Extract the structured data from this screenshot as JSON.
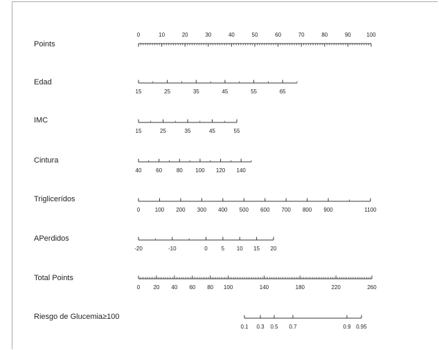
{
  "chart_data": {
    "type": "nomogram",
    "title": "",
    "points_range": [
      0,
      100
    ],
    "rows": [
      {
        "name": "Points",
        "ticks": [
          "0",
          "10",
          "20",
          "30",
          "40",
          "50",
          "60",
          "70",
          "80",
          "90",
          "100"
        ],
        "tick_values": [
          0,
          10,
          20,
          30,
          40,
          50,
          60,
          70,
          80,
          90,
          100
        ],
        "range": [
          0,
          100
        ],
        "minor_step": 1,
        "labels_above": true
      },
      {
        "name": "Edad",
        "ticks": [
          "15",
          "25",
          "35",
          "45",
          "55",
          "65"
        ],
        "tick_values": [
          15,
          25,
          35,
          45,
          55,
          65
        ],
        "range": [
          15,
          70
        ],
        "minor_step": 5,
        "labels_above": false
      },
      {
        "name": "IMC",
        "ticks": [
          "15",
          "25",
          "35",
          "45",
          "55"
        ],
        "tick_values": [
          15,
          25,
          35,
          45,
          55
        ],
        "range": [
          15,
          55
        ],
        "minor_step": 5,
        "labels_above": false
      },
      {
        "name": "Cintura",
        "ticks": [
          "40",
          "60",
          "80",
          "100",
          "120",
          "140"
        ],
        "tick_values": [
          40,
          60,
          80,
          100,
          120,
          140
        ],
        "range": [
          40,
          150
        ],
        "minor_step": 10,
        "labels_above": false
      },
      {
        "name": "Triglicerídos",
        "ticks": [
          "0",
          "100",
          "200",
          "300",
          "400",
          "500",
          "600",
          "700",
          "800",
          "900",
          "1100"
        ],
        "tick_values": [
          0,
          100,
          200,
          300,
          400,
          500,
          600,
          700,
          800,
          900,
          1100
        ],
        "range": [
          0,
          1100
        ],
        "minor_step": 100,
        "labels_above": false
      },
      {
        "name": "APerdidos",
        "ticks": [
          "-20",
          "-10",
          "0",
          "5",
          "10",
          "15",
          "20"
        ],
        "tick_values": [
          -20,
          -10,
          0,
          5,
          10,
          15,
          20
        ],
        "range": [
          -20,
          20
        ],
        "minor_step": 5,
        "labels_above": false
      },
      {
        "name": "Total Points",
        "ticks": [
          "0",
          "20",
          "40",
          "60",
          "80",
          "100",
          "140",
          "180",
          "220",
          "260"
        ],
        "tick_values": [
          0,
          20,
          40,
          60,
          80,
          100,
          140,
          180,
          220,
          260
        ],
        "range": [
          0,
          260
        ],
        "minor_step": 2,
        "labels_above": false
      },
      {
        "name": "Riesgo de Glucemia≥100",
        "ticks": [
          "0.1",
          "0.3",
          "0.5",
          "0.7",
          "0.9",
          "0.95"
        ],
        "tick_values": [
          0.1,
          0.3,
          0.5,
          0.7,
          0.9,
          0.95
        ],
        "range": [
          0.1,
          0.95
        ],
        "minor_step": null,
        "labels_above": false
      }
    ]
  }
}
